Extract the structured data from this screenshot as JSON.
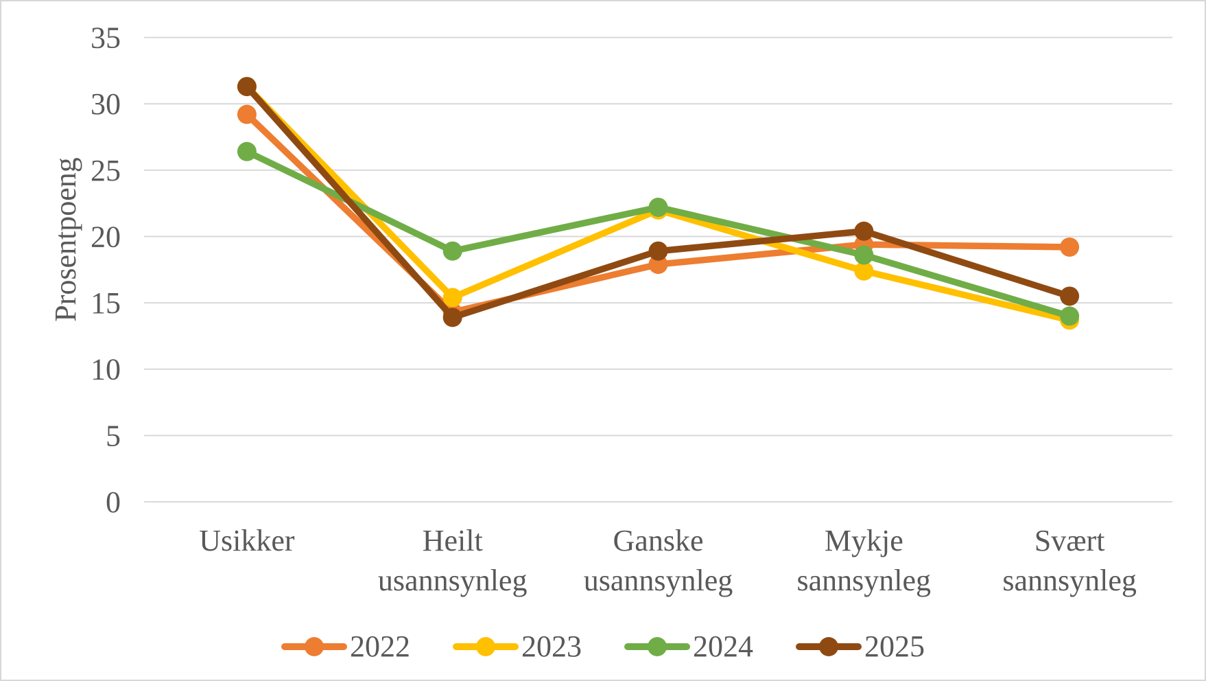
{
  "figure": {
    "background": "#FFFFFF",
    "frame_border_color": "#D7D7D7",
    "text_color": "#595959",
    "gridline_color": "#D9D9D9"
  },
  "chart_data": {
    "type": "line",
    "title": "",
    "xlabel": "",
    "ylabel": "Prosentpoeng",
    "ylim": [
      0,
      35
    ],
    "yticks": [
      0,
      5,
      10,
      15,
      20,
      25,
      30,
      35
    ],
    "grid": true,
    "legend_position": "bottom",
    "marker": "circle",
    "categories": [
      "Usikker",
      "Heilt usannsynleg",
      "Ganske usannsynleg",
      "Mykje sannsynleg",
      "Svært sannsynleg"
    ],
    "categories_lines": [
      [
        "Usikker"
      ],
      [
        "Heilt",
        "usannsynleg"
      ],
      [
        "Ganske",
        "usannsynleg"
      ],
      [
        "Mykje",
        "sannsynleg"
      ],
      [
        "Svært",
        "sannsynleg"
      ]
    ],
    "series": [
      {
        "name": "2022",
        "color": "#ED7D31",
        "values": [
          29.2,
          14.3,
          17.9,
          19.4,
          19.2
        ]
      },
      {
        "name": "2023",
        "color": "#FFC000",
        "values": [
          31.3,
          15.4,
          22.0,
          17.4,
          13.7
        ]
      },
      {
        "name": "2024",
        "color": "#70AD47",
        "values": [
          26.4,
          18.9,
          22.2,
          18.6,
          14.0
        ]
      },
      {
        "name": "2025",
        "color": "#8F4A12",
        "values": [
          31.3,
          13.9,
          18.9,
          20.4,
          15.5
        ]
      }
    ]
  }
}
